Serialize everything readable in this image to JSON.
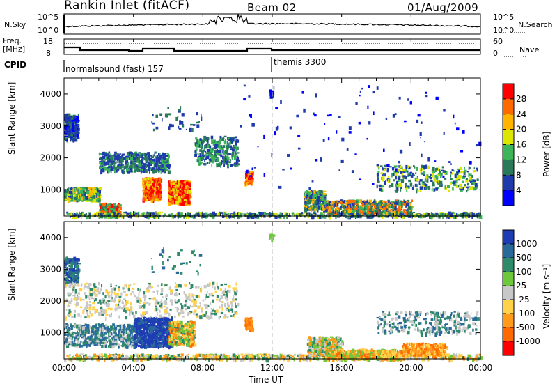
{
  "header": {
    "station": "Rankin Inlet (fitACF)",
    "beam": "Beam 02",
    "date": "01/Aug/2009"
  },
  "strip": {
    "left_top_label": "N.Sky",
    "left_top_ticks": [
      "10^5",
      "10^0"
    ],
    "right_top_ticks": [
      "10^5",
      "10^0"
    ],
    "right_top_label": "N.Search",
    "left_mid_label_1": "Freq.",
    "left_mid_label_2": "[MHz]",
    "left_mid_ticks": [
      "18",
      "8"
    ],
    "right_mid_ticks": [
      "60",
      "0"
    ],
    "right_mid_label": "Nave",
    "cpid_label": "CPID",
    "cpid_1": "normalsound (fast) 157",
    "cpid_2": "themis 3300"
  },
  "chart_data": [
    {
      "type": "heatmap",
      "ylabel": "Slant Range [km]",
      "yticks": [
        "4000",
        "3000",
        "2000",
        "1000"
      ],
      "ylim": [
        180,
        4500
      ],
      "colorbar": {
        "label": "Power [dB]",
        "ticks": [
          "28",
          "24",
          "20",
          "16",
          "12",
          "8",
          "4"
        ],
        "colors": [
          "#ff0000",
          "#ff6a00",
          "#ffb400",
          "#dce600",
          "#3cb45a",
          "#2a7a5a",
          "#1f3aaa",
          "#0000ff"
        ]
      },
      "x": [
        "00:00",
        "04:00",
        "08:00",
        "12:00",
        "16:00",
        "20:00",
        "00:00"
      ]
    },
    {
      "type": "heatmap",
      "xlabel": "Time UT",
      "ylabel": "Slant Range [km]",
      "yticks": [
        "4000",
        "3000",
        "2000",
        "1000"
      ],
      "ylim": [
        180,
        4500
      ],
      "colorbar": {
        "label": "Velocity [m s⁻¹]",
        "ticks": [
          "1000",
          "500",
          "100",
          "25",
          "-25",
          "-100",
          "-500",
          "-1000"
        ],
        "colors": [
          "#1e3cb4",
          "#2a6a9a",
          "#2f8a6a",
          "#6ec83c",
          "#c8c8c8",
          "#ffd24a",
          "#ff9a1a",
          "#ff6a00",
          "#ff0000"
        ]
      },
      "x": [
        "00:00",
        "04:00",
        "08:00",
        "12:00",
        "16:00",
        "20:00",
        "00:00"
      ]
    }
  ]
}
